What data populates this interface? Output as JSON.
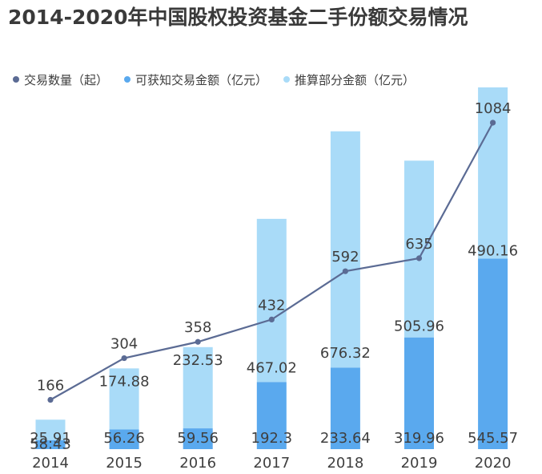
{
  "title": "2014-2020年中国股权投资基金二手份额交易情况",
  "legend": [
    {
      "label": "交易数量（起）",
      "color": "#5b6b94"
    },
    {
      "label": "可获知交易金额（亿元）",
      "color": "#5aa9ee"
    },
    {
      "label": "推算部分金额（亿元）",
      "color": "#a9dbf8"
    }
  ],
  "chart_data": {
    "type": "bar",
    "categories": [
      "2014",
      "2015",
      "2016",
      "2017",
      "2018",
      "2019",
      "2020"
    ],
    "series": [
      {
        "name": "可获知交易金额（亿元）",
        "values": [
          25.91,
          56.26,
          59.56,
          192.3,
          233.64,
          319.96,
          545.57
        ],
        "color": "#5aa9ee"
      },
      {
        "name": "推算部分金额（亿元）",
        "values": [
          58.43,
          174.88,
          232.53,
          467.02,
          676.32,
          505.96,
          490.16
        ],
        "color": "#a9dbf8"
      }
    ],
    "line": {
      "name": "交易数量（起）",
      "values": [
        166,
        304,
        358,
        432,
        592,
        635,
        1084
      ],
      "color": "#5b6b94"
    },
    "stacked": true,
    "bar_value_max": 1084,
    "line_value_max": 1084,
    "grid": false,
    "legend_position": "top-left"
  }
}
